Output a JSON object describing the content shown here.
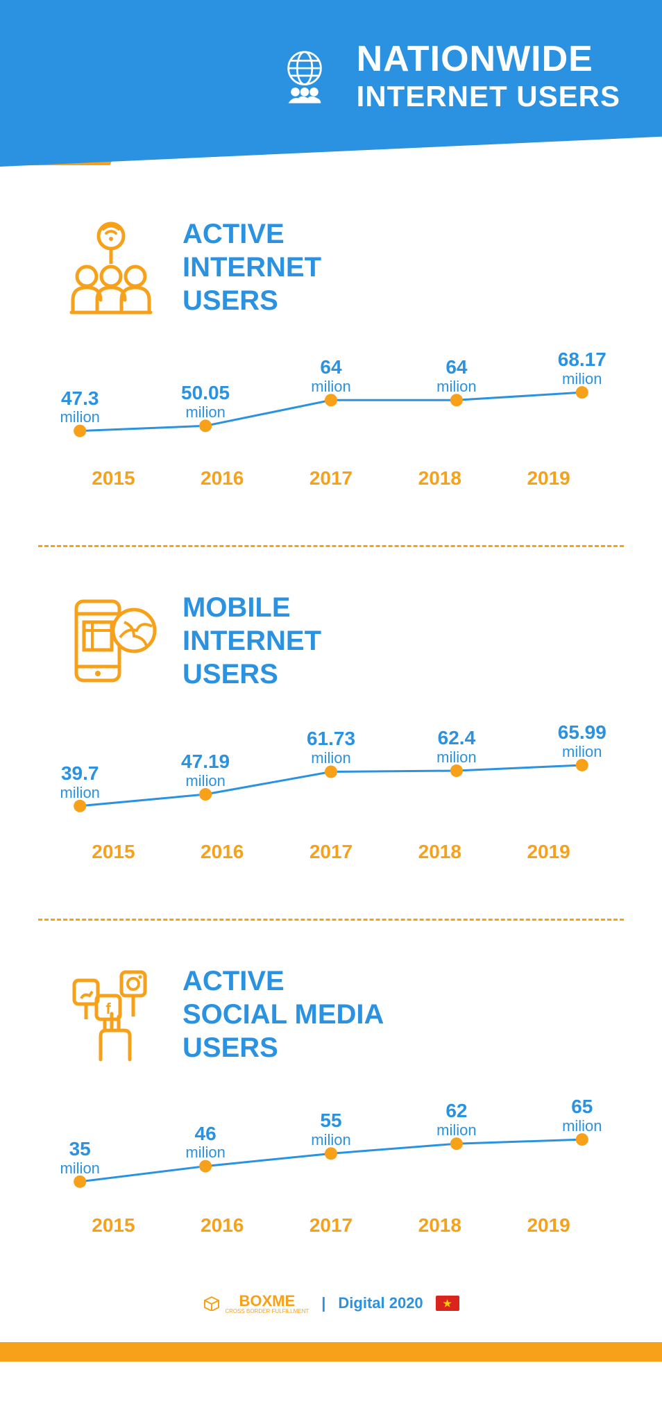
{
  "header": {
    "title": "NATIONWIDE",
    "subtitle": "INTERNET USERS",
    "bg_color": "#2a92e0",
    "accent_color": "#f7a11b",
    "text_color": "#ffffff"
  },
  "sections": [
    {
      "id": "active-internet",
      "title_lines": [
        "ACTIVE",
        "INTERNET",
        "USERS"
      ],
      "icon": "wifi-people-icon",
      "chart": {
        "type": "line",
        "years": [
          "2015",
          "2016",
          "2017",
          "2018",
          "2019"
        ],
        "values": [
          47.3,
          50.05,
          64,
          64,
          68.17
        ],
        "value_display": [
          "47.3",
          "50.05",
          "64",
          "64",
          "68.17"
        ],
        "unit": "milion",
        "y_min": 40,
        "y_max": 72,
        "line_color": "#2a92e0",
        "marker_color": "#f7a11b",
        "marker_radius": 9,
        "line_width": 3,
        "value_color": "#2a92e0",
        "year_color": "#f7a11b",
        "value_fontsize": 28,
        "unit_fontsize": 22,
        "year_fontsize": 28
      }
    },
    {
      "id": "mobile-internet",
      "title_lines": [
        "MOBILE",
        "INTERNET",
        "USERS"
      ],
      "icon": "mobile-globe-icon",
      "chart": {
        "type": "line",
        "years": [
          "2015",
          "2016",
          "2017",
          "2018",
          "2019"
        ],
        "values": [
          39.7,
          47.19,
          61.73,
          62.4,
          65.99
        ],
        "value_display": [
          "39.7",
          "47.19",
          "61.73",
          "62.4",
          "65.99"
        ],
        "unit": "milion",
        "y_min": 32,
        "y_max": 70,
        "line_color": "#2a92e0",
        "marker_color": "#f7a11b",
        "marker_radius": 9,
        "line_width": 3,
        "value_color": "#2a92e0",
        "year_color": "#f7a11b",
        "value_fontsize": 28,
        "unit_fontsize": 22,
        "year_fontsize": 28
      }
    },
    {
      "id": "social-media",
      "title_lines": [
        "ACTIVE",
        "SOCIAL MEDIA",
        "USERS"
      ],
      "icon": "social-hand-icon",
      "chart": {
        "type": "line",
        "years": [
          "2015",
          "2016",
          "2017",
          "2018",
          "2019"
        ],
        "values": [
          35,
          46,
          55,
          62,
          65
        ],
        "value_display": [
          "35",
          "46",
          "55",
          "62",
          "65"
        ],
        "unit": "milion",
        "y_min": 28,
        "y_max": 70,
        "line_color": "#2a92e0",
        "marker_color": "#f7a11b",
        "marker_radius": 9,
        "line_width": 3,
        "value_color": "#2a92e0",
        "year_color": "#f7a11b",
        "value_fontsize": 28,
        "unit_fontsize": 22,
        "year_fontsize": 28
      }
    }
  ],
  "footer": {
    "brand": "BOXME",
    "brand_tagline": "CROSS BORDER FULFILLMENT",
    "separator": "|",
    "text": "Digital 2020",
    "flag": "vietnam",
    "bar_color": "#f7a11b"
  },
  "colors": {
    "primary_blue": "#2a92e0",
    "primary_orange": "#f7a11b",
    "white": "#ffffff"
  }
}
